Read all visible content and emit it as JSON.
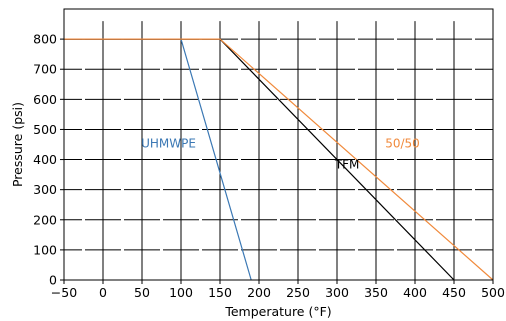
{
  "chart_data": {
    "type": "line",
    "xlabel": "Temperature (°F)",
    "ylabel": "Pressure (psi)",
    "xlim": [
      -50,
      500
    ],
    "ylim": [
      0,
      900
    ],
    "xticks": [
      -50,
      0,
      50,
      100,
      150,
      200,
      250,
      300,
      350,
      400,
      450,
      500
    ],
    "yticks": [
      0,
      100,
      200,
      300,
      400,
      500,
      600,
      700,
      800
    ],
    "grid": "crosshair marks at tick intersections",
    "series": [
      {
        "name": "UHMWPE",
        "color": "#3b78b4",
        "x": [
          -50,
          100,
          190
        ],
        "y": [
          800,
          800,
          0
        ]
      },
      {
        "name": "TFM",
        "color": "#000000",
        "x": [
          -50,
          150,
          450
        ],
        "y": [
          800,
          800,
          0
        ]
      },
      {
        "name": "50/50",
        "color": "#f08a3c",
        "x": [
          -50,
          150,
          500
        ],
        "y": [
          800,
          800,
          0
        ]
      }
    ],
    "annotations": [
      {
        "text": "UHMWPE",
        "x": 84,
        "y": 440,
        "color": "#3b78b4"
      },
      {
        "text": "TFM",
        "x": 313,
        "y": 370,
        "color": "#000000"
      },
      {
        "text": "50/50",
        "x": 384,
        "y": 440,
        "color": "#f08a3c"
      }
    ]
  }
}
